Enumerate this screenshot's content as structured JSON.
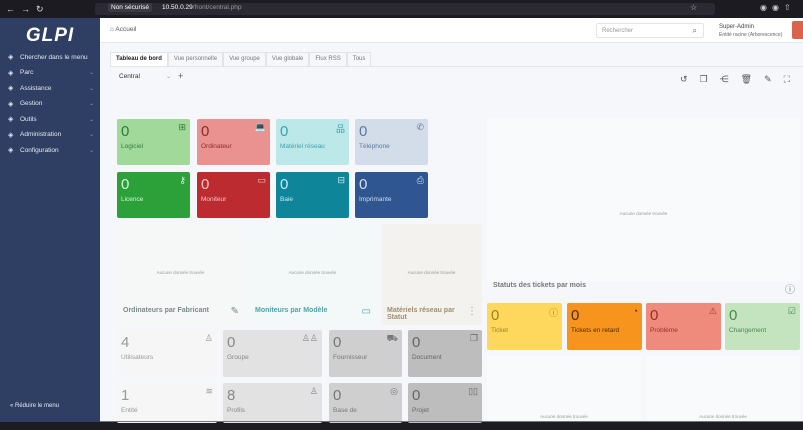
{
  "browser": {
    "nav_icons": [
      "back-icon",
      "forward-icon",
      "reload-icon"
    ],
    "security": "Non sécurisé",
    "url_host": "10.50.0.29",
    "url_path": "/front/central.php"
  },
  "sidebar": {
    "logo": "GLPI",
    "items": [
      {
        "label": "Chercher dans le menu",
        "icon": "search-arrow-icon",
        "chevron": false
      },
      {
        "label": "Parc",
        "icon": "package-icon",
        "chevron": true
      },
      {
        "label": "Assistance",
        "icon": "headset-icon",
        "chevron": true
      },
      {
        "label": "Gestion",
        "icon": "wallet-icon",
        "chevron": true
      },
      {
        "label": "Outils",
        "icon": "briefcase-icon",
        "chevron": true
      },
      {
        "label": "Administration",
        "icon": "shield-icon",
        "chevron": true
      },
      {
        "label": "Configuration",
        "icon": "gear-icon",
        "chevron": true
      }
    ],
    "collapse": "Réduire le menu"
  },
  "header": {
    "breadcrumb": "Accueil",
    "search_placeholder": "Rechercher",
    "user": "Super-Admin",
    "entity": "Entité racine (Arborescence)"
  },
  "tabs": [
    "Tableau de bord",
    "Vue personnelle",
    "Vue groupe",
    "Vue globale",
    "Flux RSS",
    "Tous"
  ],
  "dashboard": {
    "selected": "Central",
    "add": "+"
  },
  "colors": {
    "sidebar": "#2f3f64",
    "accent": "#d9634d"
  },
  "tiles_assets": [
    {
      "value": "0",
      "label": "Logiciel",
      "bg": "#a1d99b",
      "fg": "#2f7a3a",
      "icon": "apps-icon",
      "glyph": "⊞"
    },
    {
      "value": "0",
      "label": "Ordinateur",
      "bg": "#e99290",
      "fg": "#8e2a2a",
      "icon": "laptop-icon",
      "glyph": "💻"
    },
    {
      "value": "0",
      "label": "Matériel réseau",
      "bg": "#bde8ea",
      "fg": "#3aa3ad",
      "icon": "network-icon",
      "glyph": "品"
    },
    {
      "value": "0",
      "label": "Téléphone",
      "bg": "#d3dde9",
      "fg": "#5a7aa0",
      "icon": "phone-icon",
      "glyph": "✆"
    },
    {
      "value": "0",
      "label": "Licence",
      "bg": "#2ca13a",
      "fg": "#d8f5d8",
      "icon": "key-icon",
      "glyph": "⚷"
    },
    {
      "value": "0",
      "label": "Moniteur",
      "bg": "#bb2b30",
      "fg": "#f5c5c5",
      "icon": "monitor-icon",
      "glyph": "▭"
    },
    {
      "value": "0",
      "label": "Baie",
      "bg": "#0f8599",
      "fg": "#c5eef5",
      "icon": "server-icon",
      "glyph": "⊟"
    },
    {
      "value": "0",
      "label": "Imprimante",
      "bg": "#2f5690",
      "fg": "#d3def0",
      "icon": "printer-icon",
      "glyph": "⎙"
    }
  ],
  "cards": [
    {
      "title": "Ordinateurs par Fabricant",
      "empty": "Aucune donnée trouvée",
      "bg": "#f6f8f8",
      "fg": "#7a8a8a",
      "icon": "edit-icon",
      "glyph": "✎"
    },
    {
      "title": "Moniteurs par Modèle",
      "empty": "Aucune donnée trouvée",
      "bg": "#f3f8f8",
      "fg": "#4fa3a8",
      "icon": "monitor-icon",
      "glyph": "▭"
    },
    {
      "title": "Matériels réseau par Statut",
      "empty": "Aucune donnée trouvée",
      "bg": "#f3f2ee",
      "fg": "#a08e6e",
      "icon": "hierarchy-icon",
      "glyph": "⋮"
    }
  ],
  "tiles_admin": [
    {
      "value": "4",
      "label": "Utilisateurs",
      "bg": "#f6f6f6",
      "fg": "#999",
      "icon": "user-icon",
      "glyph": "♙"
    },
    {
      "value": "0",
      "label": "Groupe",
      "bg": "#e2e2e2",
      "fg": "#888",
      "icon": "users-icon",
      "glyph": "♙♙"
    },
    {
      "value": "0",
      "label": "Fournisseur",
      "bg": "#cfcfcf",
      "fg": "#777",
      "icon": "dolly-icon",
      "glyph": "⛟"
    },
    {
      "value": "0",
      "label": "Document",
      "bg": "#bdbdbd",
      "fg": "#666",
      "icon": "files-icon",
      "glyph": "❐"
    },
    {
      "value": "1",
      "label": "Entité",
      "bg": "#f6f6f6",
      "fg": "#999",
      "icon": "stack-icon",
      "glyph": "≋"
    },
    {
      "value": "8",
      "label": "Profils",
      "bg": "#e2e2e2",
      "fg": "#888",
      "icon": "user-check-icon",
      "glyph": "♙"
    },
    {
      "value": "0",
      "label": "Base de",
      "bg": "#cfcfcf",
      "fg": "#777",
      "icon": "lifebuoy-icon",
      "glyph": "◎"
    },
    {
      "value": "0",
      "label": "Projet",
      "bg": "#bdbdbd",
      "fg": "#666",
      "icon": "columns-icon",
      "glyph": "▯▯"
    }
  ],
  "right": {
    "empty": "Aucune donnée trouvée",
    "ticket_chart_title": "Statuts des tickets par mois"
  },
  "tiles_tickets": [
    {
      "value": "0",
      "label": "Ticket",
      "bg": "#fdd85d",
      "fg": "#a08020",
      "icon": "alert-circle-icon",
      "glyph": "ⓘ"
    },
    {
      "value": "0",
      "label": "Tickets en retard",
      "bg": "#f7941d",
      "fg": "#4a2a00",
      "icon": "clock-icon",
      "glyph": "◔"
    },
    {
      "value": "0",
      "label": "Problème",
      "bg": "#ef8b7d",
      "fg": "#a02a2a",
      "icon": "warning-icon",
      "glyph": "⚠"
    },
    {
      "value": "0",
      "label": "Changement",
      "bg": "#c4e4c0",
      "fg": "#4a8a4a",
      "icon": "clipboard-check-icon",
      "glyph": "☑"
    }
  ]
}
